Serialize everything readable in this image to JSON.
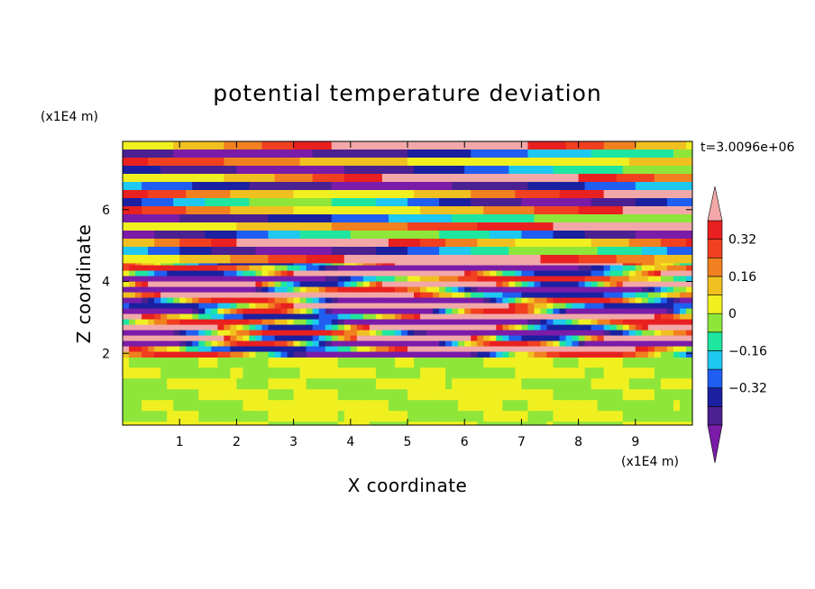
{
  "chart_data": {
    "type": "heatmap",
    "title": "potential temperature deviation",
    "xlabel": "X coordinate",
    "ylabel": "Z coordinate",
    "x_unit": "(x1E4 m)",
    "z_unit": "(x1E4 m)",
    "time_label": "t=3.0096e+06",
    "xlim": [
      0,
      10
    ],
    "ylim": [
      0,
      7.9
    ],
    "x_ticks": [
      1,
      2,
      3,
      4,
      5,
      6,
      7,
      8,
      9
    ],
    "y_ticks": [
      2,
      4,
      6
    ],
    "colorbar": {
      "levels": [
        -0.48,
        -0.4,
        -0.32,
        -0.24,
        -0.16,
        -0.08,
        0,
        0.08,
        0.16,
        0.24,
        0.32,
        0.4,
        0.48
      ],
      "tick_values": [
        0.32,
        0.16,
        0,
        -0.16,
        -0.32
      ],
      "tick_labels": [
        "0.32",
        "0.16",
        "0",
        "−0.16",
        "−0.32"
      ],
      "colors": [
        "#7a1ca8",
        "#4b2090",
        "#1a20a0",
        "#1f5ef0",
        "#1ec8f0",
        "#1ee6a0",
        "#8fe63a",
        "#f0f020",
        "#f0c020",
        "#f08020",
        "#f04020",
        "#e82020",
        "#f2a8a8"
      ],
      "extend": "both"
    },
    "layers": [
      {
        "zmin": 0.0,
        "zmax": 1.9,
        "pattern": "smooth near-zero field",
        "values": [
          -0.04,
          0.0,
          0.04
        ]
      },
      {
        "zmin": 1.9,
        "zmax": 4.6,
        "pattern": "thin alternating horizontal bands",
        "values": [
          -0.48,
          0.48
        ]
      },
      {
        "zmin": 4.6,
        "zmax": 7.9,
        "pattern": "thick alternating horizontal bands",
        "values": [
          -0.48,
          0.48
        ]
      }
    ]
  }
}
